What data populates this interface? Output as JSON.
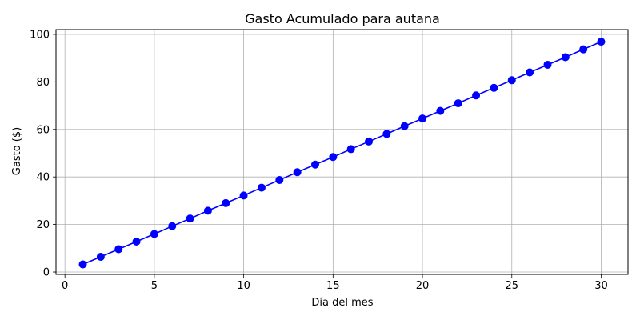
{
  "chart_data": {
    "type": "line",
    "title": "Gasto Acumulado para autana",
    "xlabel": "Día del mes",
    "ylabel": "Gasto ($)",
    "xlim": [
      -0.5,
      31.5
    ],
    "ylim": [
      -1,
      102
    ],
    "x_ticks": [
      0,
      5,
      10,
      15,
      20,
      25,
      30
    ],
    "y_ticks": [
      0,
      20,
      40,
      60,
      80,
      100
    ],
    "grid": true,
    "series": [
      {
        "color": "#0000ff",
        "marker": "circle",
        "x": [
          1,
          2,
          3,
          4,
          5,
          6,
          7,
          8,
          9,
          10,
          11,
          12,
          13,
          14,
          15,
          16,
          17,
          18,
          19,
          20,
          21,
          22,
          23,
          24,
          25,
          26,
          27,
          28,
          29,
          30
        ],
        "y": [
          3.2,
          6.4,
          9.6,
          12.8,
          16.0,
          19.3,
          22.5,
          25.8,
          29.0,
          32.2,
          35.5,
          38.7,
          42.0,
          45.2,
          48.4,
          51.7,
          54.9,
          58.1,
          61.4,
          64.6,
          67.8,
          71.0,
          74.3,
          77.5,
          80.7,
          84.0,
          87.2,
          90.4,
          93.7,
          96.9
        ]
      }
    ]
  }
}
